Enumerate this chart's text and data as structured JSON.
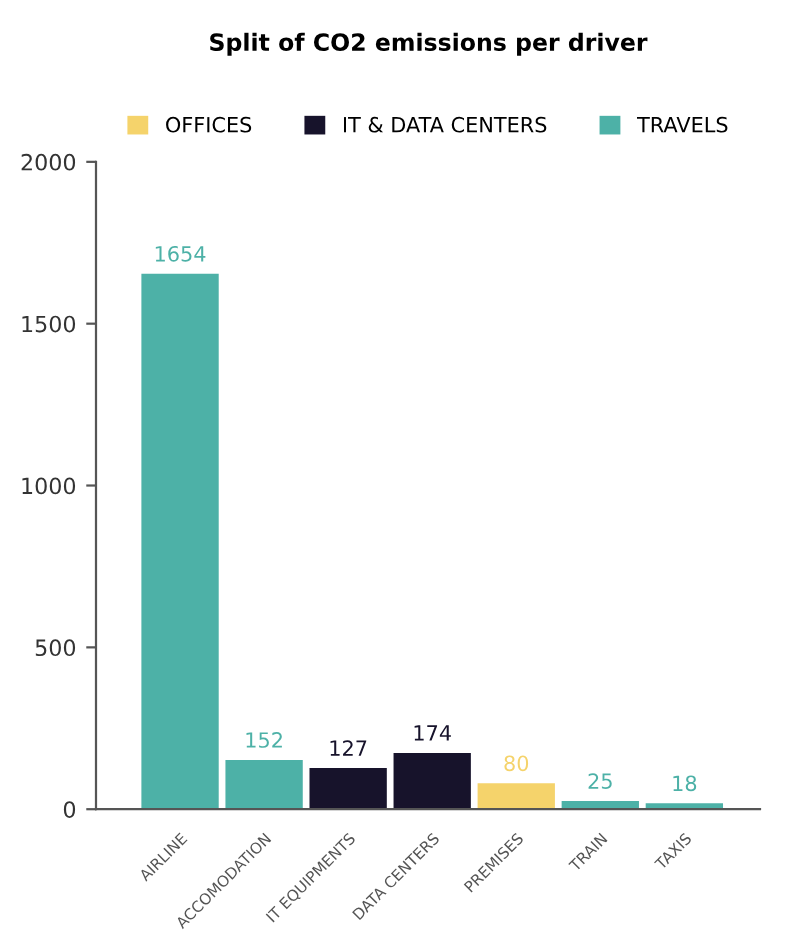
{
  "chart_data": {
    "type": "bar",
    "title": "Split of CO2 emissions per driver",
    "categories": [
      "AIRLINE",
      "ACCOMODATION",
      "IT EQUIPMENTS",
      "DATA CENTERS",
      "PREMISES",
      "TRAIN",
      "TAXIS"
    ],
    "series": [
      {
        "name": "OFFICES",
        "color": "#f5d36b",
        "values": [
          null,
          null,
          null,
          null,
          80,
          null,
          null
        ]
      },
      {
        "name": "IT & DATA CENTERS",
        "color": "#17132b",
        "values": [
          null,
          null,
          127,
          174,
          null,
          null,
          null
        ]
      },
      {
        "name": "TRAVELS",
        "color": "#4db1a7",
        "values": [
          1654,
          152,
          null,
          null,
          null,
          25,
          18
        ]
      }
    ],
    "ylim": [
      0,
      2000
    ],
    "yticks": [
      0,
      500,
      1000,
      1500,
      2000
    ],
    "grid": false,
    "legend": "top",
    "data_labels": true
  }
}
